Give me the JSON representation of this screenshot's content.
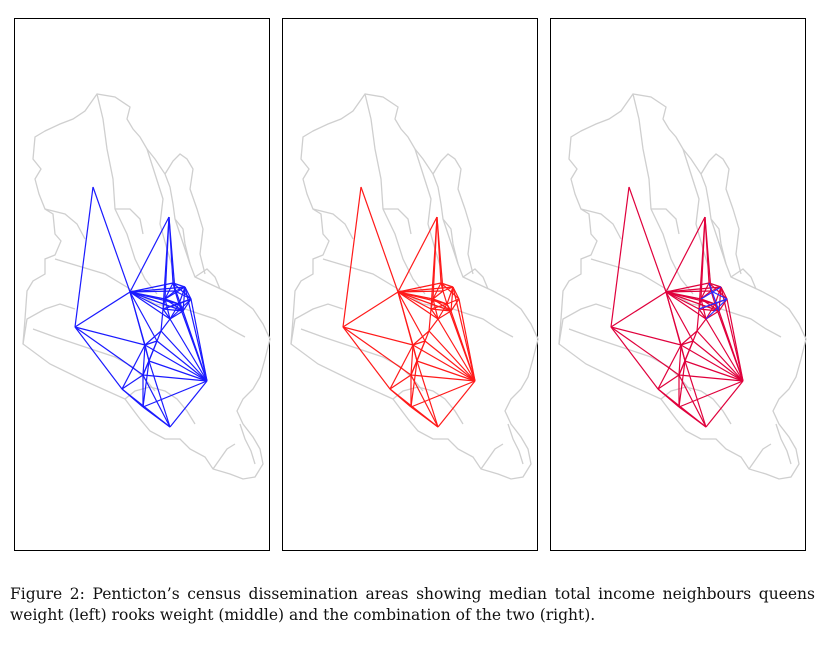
{
  "figure": {
    "caption_label": "Figure 2:",
    "caption_text": "Penticton’s census dissemination areas showing median total income neighbours queens weight (left) rooks weight (middle) and the combination of the two (right)."
  },
  "colors": {
    "queens": "#1a1aff",
    "rooks": "#ff1a1a",
    "combined_rooks": "#e0003c",
    "combined_queens": "#2a2aff",
    "boundary": "#cfcfcf",
    "frame": "#000000"
  },
  "panels": [
    {
      "id": "left",
      "weight": "queens"
    },
    {
      "id": "middle",
      "weight": "rooks"
    },
    {
      "id": "right",
      "weight": "combined"
    }
  ]
}
